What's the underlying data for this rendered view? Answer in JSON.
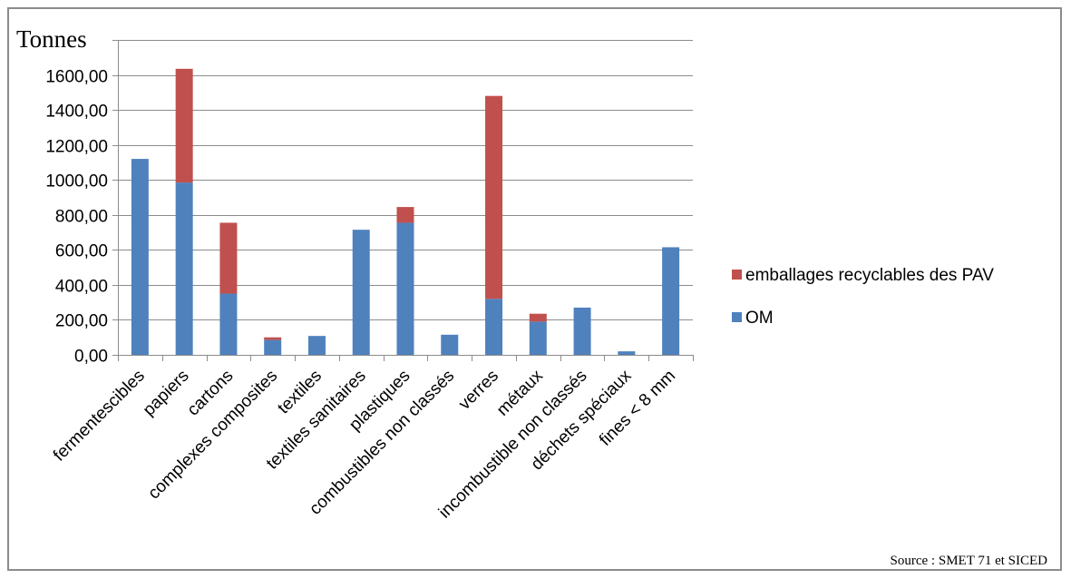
{
  "chart_data": {
    "type": "bar",
    "stacked": true,
    "ylabel": "Tonnes",
    "xlabel": "",
    "ylim": [
      0,
      1800
    ],
    "yticks": [
      0,
      200,
      400,
      600,
      800,
      1000,
      1200,
      1400,
      1600,
      1800
    ],
    "ytick_labels": [
      "0,00",
      "200,00",
      "400,00",
      "600,00",
      "800,00",
      "1000,00",
      "1200,00",
      "1400,00",
      "1600,00",
      ""
    ],
    "grid": true,
    "legend_position": "right",
    "categories": [
      "fermentescibles",
      "papiers",
      "cartons",
      "complexes composites",
      "textiles",
      "textiles sanitaires",
      "plastiques",
      "combustibles non classés",
      "verres",
      "métaux",
      "incombustible non classés",
      "déchets spéciaux",
      "fines < 8 mm"
    ],
    "series": [
      {
        "name": "OM",
        "color": "#4f81bd",
        "values": [
          1120,
          985,
          350,
          85,
          108,
          715,
          755,
          115,
          320,
          190,
          270,
          20,
          615
        ]
      },
      {
        "name": "emballages recyclables des PAV",
        "color": "#c0504d",
        "values": [
          0,
          650,
          405,
          15,
          0,
          0,
          90,
          0,
          1160,
          45,
          0,
          0,
          0
        ]
      }
    ],
    "legend_order": [
      "emballages recyclables des PAV",
      "OM"
    ]
  },
  "source_note": "Source : SMET 71 et SICED"
}
